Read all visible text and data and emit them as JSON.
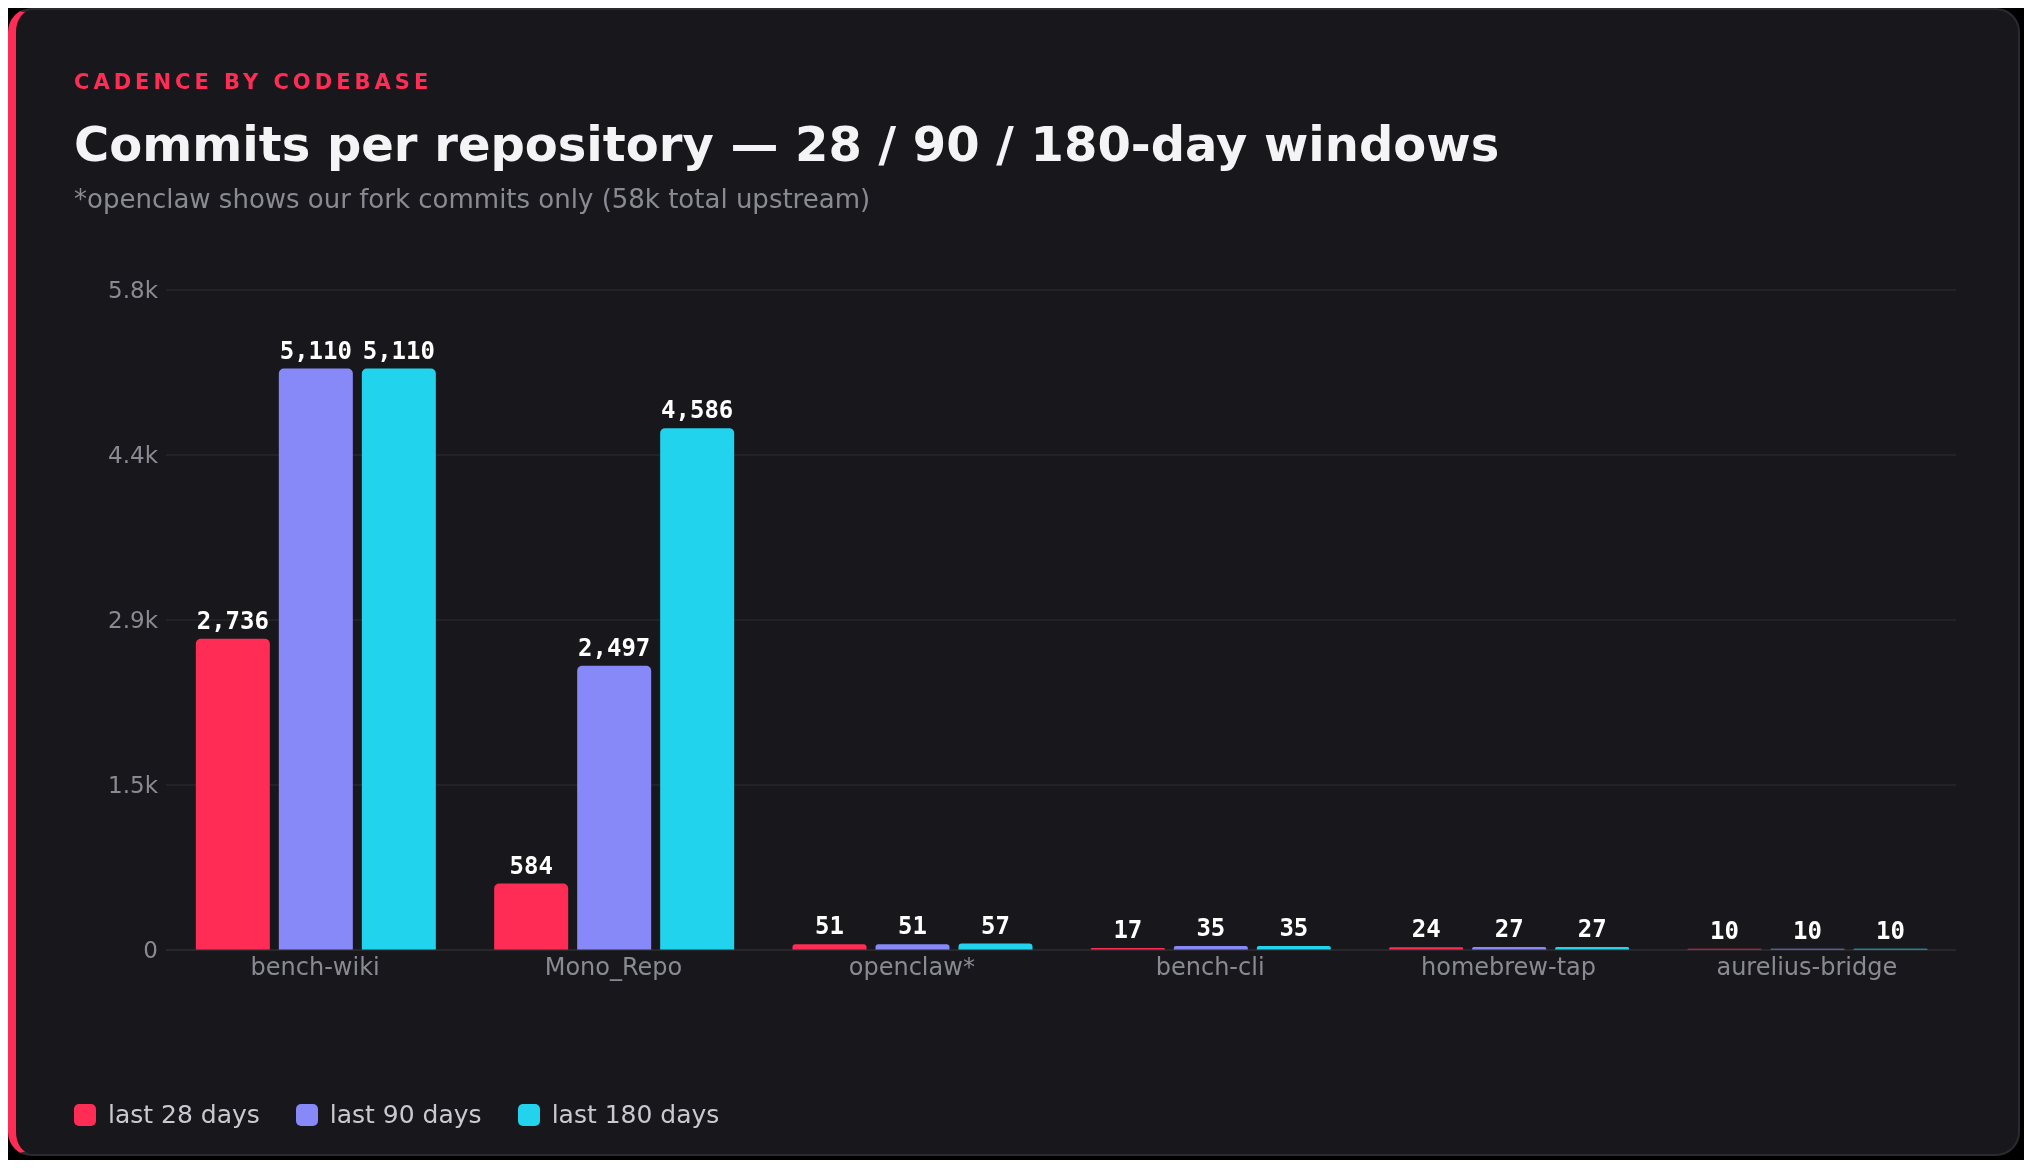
{
  "chart_data": {
    "type": "bar",
    "title": "Commits per repository — 28 / 90 / 180-day windows",
    "subtitle": "*openclaw shows our fork commits only (58k total upstream)",
    "annotations": [
      "CADENCE BY CODEBASE"
    ],
    "categories": [
      "bench-wiki",
      "Mono_Repo",
      "openclaw*",
      "bench-cli",
      "homebrew-tap",
      "aurelius-bridge"
    ],
    "series": [
      {
        "name": "last 28 days",
        "color": "#ff2d55",
        "values": [
          2736,
          584,
          51,
          17,
          24,
          10
        ],
        "value_labels": [
          "2,736",
          "584",
          "51",
          "17",
          "24",
          "10"
        ]
      },
      {
        "name": "last 90 days",
        "color": "#8689f7",
        "values": [
          5110,
          2497,
          51,
          35,
          27,
          10
        ],
        "value_labels": [
          "5,110",
          "2,497",
          "51",
          "35",
          "27",
          "10"
        ]
      },
      {
        "name": "last 180 days",
        "color": "#22d3ee",
        "values": [
          5110,
          4586,
          57,
          35,
          27,
          10
        ],
        "value_labels": [
          "5,110",
          "4,586",
          "57",
          "35",
          "27",
          "10"
        ]
      }
    ],
    "ylim": [
      0,
      5800
    ],
    "yticks": [
      0,
      {
        "value": 1450,
        "label": "1.5k"
      },
      {
        "value": 2900,
        "label": "2.9k"
      },
      {
        "value": 4350,
        "label": "4.4k"
      },
      {
        "value": 5800,
        "label": "5.8k"
      }
    ],
    "grid": "y",
    "legend": "bottom left"
  }
}
